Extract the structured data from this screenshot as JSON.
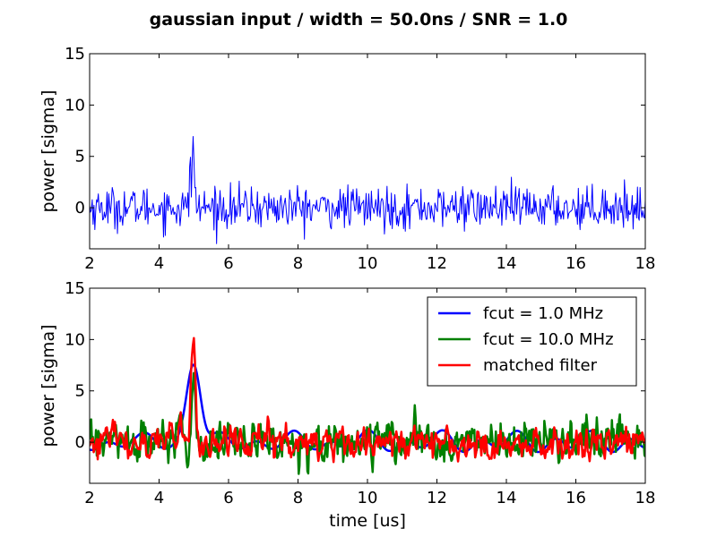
{
  "chart_data": {
    "suptitle": "gaussian input / width = 50.0ns / SNR = 1.0",
    "panels": [
      {
        "type": "line",
        "ylabel": "power [sigma]",
        "xlabel": "",
        "xlim": [
          2,
          18
        ],
        "ylim": [
          -4,
          15
        ],
        "xticks": [
          2,
          4,
          6,
          8,
          10,
          12,
          14,
          16,
          18
        ],
        "yticks": [
          0,
          5,
          10,
          15
        ],
        "grid": false,
        "legend": null,
        "series": [
          {
            "name": "",
            "color": "#0000ff",
            "linewidth": 1,
            "kind": "noise",
            "x_range": [
              2,
              18
            ],
            "n_points": 640,
            "noise_sigma": 1.0,
            "peaks": [
              {
                "x": 4.98,
                "y": 6.6,
                "width": 0.03
              },
              {
                "x": 4.9,
                "y": 4.6,
                "width": 0.02
              },
              {
                "x": 12.75,
                "y": 3.4,
                "width": 0.01
              },
              {
                "x": 16.78,
                "y": 3.0,
                "width": 0.01
              }
            ]
          }
        ]
      },
      {
        "type": "line",
        "ylabel": "power [sigma]",
        "xlabel": "time [us]",
        "xlim": [
          2,
          18
        ],
        "ylim": [
          -4,
          15
        ],
        "xticks": [
          2,
          4,
          6,
          8,
          10,
          12,
          14,
          16,
          18
        ],
        "yticks": [
          0,
          5,
          10,
          15
        ],
        "grid": false,
        "legend": "top-right",
        "series": [
          {
            "name": "fcut = 1.0 MHz",
            "color": "#0000ff",
            "linewidth": 2.5,
            "kind": "smooth",
            "x_range": [
              2,
              18
            ],
            "n_points": 400,
            "noise_sigma": 1.3,
            "period": 1.45,
            "peaks": [
              {
                "x": 5.0,
                "y": 8.0,
                "width": 0.2
              }
            ]
          },
          {
            "name": "fcut = 10.0 MHz",
            "color": "#008000",
            "linewidth": 2.5,
            "kind": "jagged",
            "x_range": [
              2,
              18
            ],
            "n_points": 700,
            "noise_sigma": 1.0,
            "peaks": [
              {
                "x": 5.0,
                "y": 7.2,
                "width": 0.05
              },
              {
                "x": 4.6,
                "y": 2.8,
                "width": 0.04
              }
            ]
          },
          {
            "name": "matched filter",
            "color": "#ff0000",
            "linewidth": 2.5,
            "kind": "jagged",
            "x_range": [
              2,
              18
            ],
            "n_points": 550,
            "noise_sigma": 0.9,
            "peaks": [
              {
                "x": 4.98,
                "y": 10.0,
                "width": 0.06
              },
              {
                "x": 4.6,
                "y": 2.8,
                "width": 0.04
              }
            ]
          }
        ]
      }
    ]
  }
}
